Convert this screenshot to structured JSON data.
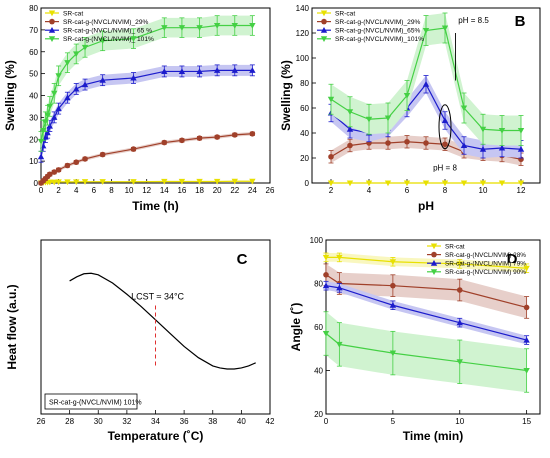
{
  "chart_data": [
    {
      "panel": "A",
      "type": "line",
      "xlabel": "Time (h)",
      "ylabel": "Swelling (%)",
      "xlim": [
        0,
        26
      ],
      "ylim": [
        0,
        80
      ],
      "xticks": [
        0,
        2,
        4,
        6,
        8,
        10,
        12,
        14,
        16,
        18,
        20,
        22,
        24,
        26
      ],
      "yticks": [
        0,
        10,
        20,
        30,
        40,
        50,
        60,
        70,
        80
      ],
      "legend": "top-left",
      "series": [
        {
          "name": "SR-cat",
          "color": "#e8e000",
          "marker": "triangle-down",
          "x": [
            0,
            0.25,
            0.5,
            0.75,
            1,
            1.5,
            2,
            3,
            4,
            5,
            7,
            10.5,
            14,
            16,
            18,
            20,
            22,
            24
          ],
          "y": [
            0,
            0.2,
            0.3,
            0.3,
            0.4,
            0.4,
            0.5,
            0.5,
            0.5,
            0.6,
            0.6,
            0.6,
            0.7,
            0.7,
            0.7,
            0.7,
            0.8,
            0.8
          ],
          "err": 0.3
        },
        {
          "name": "SR-cat-g-(NVCL/NVIM)_29%",
          "color": "#a0402a",
          "marker": "circle",
          "x": [
            0,
            0.25,
            0.5,
            0.75,
            1,
            1.5,
            2,
            3,
            4,
            5,
            7,
            10.5,
            14,
            16,
            18,
            20,
            22,
            24
          ],
          "y": [
            0,
            1,
            2,
            3,
            4,
            5,
            6,
            8,
            9.5,
            11,
            13,
            15.5,
            18.5,
            19.5,
            20.5,
            21,
            22,
            22.5
          ],
          "err": 0.8
        },
        {
          "name": "SR-cat-g-(NVCL/NVIM)_ 65 %",
          "color": "#1c1ccc",
          "marker": "triangle-up",
          "x": [
            0,
            0.25,
            0.5,
            0.75,
            1,
            1.5,
            2,
            3,
            4,
            5,
            7,
            10.5,
            14,
            16,
            18,
            20,
            22,
            24
          ],
          "y": [
            12,
            17,
            21,
            23,
            26,
            30,
            34,
            39,
            43,
            45,
            47,
            48,
            51,
            51,
            51,
            51.5,
            51.5,
            51.5
          ],
          "err": 2.5
        },
        {
          "name": "SR-cat-g-(NVCL/NVIM)_ 101%",
          "color": "#44d044",
          "marker": "triangle-down",
          "x": [
            0,
            0.25,
            0.5,
            0.75,
            1,
            1.5,
            2,
            3,
            4,
            5,
            7,
            10.5,
            14,
            16,
            18,
            20,
            22,
            24
          ],
          "y": [
            19,
            24,
            28,
            31,
            35,
            41,
            49,
            55,
            59,
            62,
            65,
            66,
            71,
            71,
            71,
            72,
            72,
            72
          ],
          "err": 4.5
        }
      ]
    },
    {
      "panel": "B",
      "type": "line",
      "xlabel": "pH",
      "ylabel": "Swelling (%)",
      "xlim": [
        1,
        13
      ],
      "ylim": [
        0,
        140
      ],
      "xticks": [
        2,
        4,
        6,
        8,
        10,
        12
      ],
      "yticks": [
        0,
        20,
        40,
        60,
        80,
        100,
        120,
        140
      ],
      "legend": "top-left",
      "annotations": [
        "pH = 8.5",
        "pH = 8"
      ],
      "series": [
        {
          "name": "SR-cat",
          "color": "#e8e000",
          "marker": "triangle-down",
          "x": [
            2,
            3,
            4,
            5,
            6,
            7,
            8,
            9,
            10,
            11,
            12
          ],
          "y": [
            0,
            0,
            0,
            0,
            0,
            0,
            0,
            0,
            0,
            0,
            0
          ],
          "err": 0.5
        },
        {
          "name": "SR-cat-g-(NVCL/NVIM)_29%",
          "color": "#a0402a",
          "marker": "circle",
          "x": [
            2,
            3,
            4,
            5,
            6,
            7,
            8,
            9,
            10,
            11,
            12
          ],
          "y": [
            21,
            30,
            32,
            32,
            33,
            32,
            31,
            25,
            23,
            22,
            19
          ],
          "err": 5
        },
        {
          "name": "SR-cat-g-(NVCL/NVIM)_65%",
          "color": "#1c1ccc",
          "marker": "triangle-up",
          "x": [
            2,
            3,
            4,
            5,
            6,
            7,
            8,
            9,
            10,
            11,
            12
          ],
          "y": [
            56,
            43,
            40,
            44,
            60,
            79,
            50,
            30,
            27,
            28,
            27
          ],
          "err": 7
        },
        {
          "name": "SR-cat-g-(NVCL/NVIM)_101%",
          "color": "#44d044",
          "marker": "triangle-down",
          "x": [
            2,
            3,
            4,
            5,
            6,
            7,
            8,
            9,
            10,
            11,
            12
          ],
          "y": [
            67,
            57,
            51,
            52,
            70,
            122,
            124,
            60,
            43,
            42,
            42
          ],
          "err": 12
        }
      ]
    },
    {
      "panel": "C",
      "type": "line",
      "xlabel": "Temperature (˚C)",
      "ylabel": "Heat flow (a.u.)",
      "xlim": [
        26,
        42
      ],
      "xticks": [
        26,
        28,
        30,
        32,
        34,
        36,
        38,
        40,
        42
      ],
      "annotations": [
        "LCST ≈ 34°C"
      ],
      "legend_box": "SR-cat-g-(NVCL/NVIM) 101%",
      "series": [
        {
          "name": "SR-cat-g-(NVCL/NVIM) 101%",
          "color": "#000000",
          "x": [
            28,
            28.5,
            29,
            29.5,
            30,
            31,
            32,
            33,
            34,
            35,
            36,
            37,
            38,
            38.5,
            39,
            39.5,
            40,
            40.5,
            41
          ],
          "y": [
            0.9,
            0.94,
            0.97,
            0.975,
            0.96,
            0.88,
            0.77,
            0.65,
            0.52,
            0.39,
            0.26,
            0.15,
            0.07,
            0.05,
            0.04,
            0.04,
            0.05,
            0.07,
            0.1
          ]
        }
      ]
    },
    {
      "panel": "D",
      "type": "line",
      "xlabel": "Time (min)",
      "ylabel": "Angle (˚)",
      "xlim": [
        0,
        16
      ],
      "ylim": [
        20,
        100
      ],
      "xticks": [
        0,
        5,
        10,
        15
      ],
      "yticks": [
        20,
        40,
        60,
        80,
        100
      ],
      "legend": "top-right",
      "series": [
        {
          "name": "SR-cat",
          "color": "#e8e000",
          "marker": "triangle-down",
          "x": [
            0,
            1,
            5,
            10,
            15
          ],
          "y": [
            92,
            92,
            90,
            89,
            87
          ],
          "err": 2
        },
        {
          "name": "SR-cat-g-(NVCL/NVIM) 28%",
          "color": "#a0402a",
          "marker": "circle",
          "x": [
            0,
            1,
            5,
            10,
            15
          ],
          "y": [
            84,
            80,
            79,
            77,
            69
          ],
          "err": 5
        },
        {
          "name": "SR-cat-g-(NVCL/NVIM) 79%",
          "color": "#1c1ccc",
          "marker": "triangle-up",
          "x": [
            0,
            1,
            5,
            10,
            15
          ],
          "y": [
            79,
            78,
            70,
            62,
            54
          ],
          "err": 2
        },
        {
          "name": "SR-cat-g-(NVCL/NVIM) 90%",
          "color": "#44d044",
          "marker": "triangle-down",
          "x": [
            0,
            1,
            5,
            10,
            15
          ],
          "y": [
            57,
            52,
            48,
            44,
            40
          ],
          "err": 10
        }
      ]
    }
  ]
}
